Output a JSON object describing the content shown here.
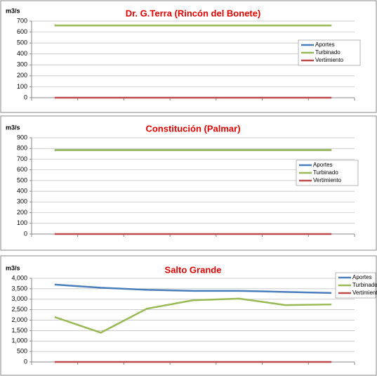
{
  "chart_data": [
    {
      "type": "line",
      "title": "Dr. G.Terra (Rincón del Bonete)",
      "y_label": "m3/s",
      "categories": [
        null,
        null,
        null,
        null,
        null,
        null,
        null
      ],
      "series": [
        {
          "name": "Aportes",
          "color": "#4a7ebb",
          "values": [
            660,
            660,
            660,
            660,
            660,
            660,
            660
          ]
        },
        {
          "name": "Turbinado",
          "color": "#98b954",
          "values": [
            660,
            660,
            660,
            660,
            660,
            660,
            660
          ]
        },
        {
          "name": "Vertimiento",
          "color": "#be4b48",
          "values": [
            0,
            0,
            0,
            0,
            0,
            0,
            0
          ]
        }
      ],
      "ylim": [
        0,
        700
      ],
      "yticks": [
        0,
        100,
        200,
        300,
        400,
        500,
        600,
        700
      ],
      "grid": true,
      "legend": "right"
    },
    {
      "type": "line",
      "title": "Constitución (Palmar)",
      "y_label": "m3/s",
      "categories": [
        null,
        null,
        null,
        null,
        null,
        null,
        null
      ],
      "series": [
        {
          "name": "Aportes",
          "color": "#4a7ebb",
          "values": [
            785,
            785,
            785,
            785,
            785,
            785,
            785
          ]
        },
        {
          "name": "Turbinado",
          "color": "#98b954",
          "values": [
            785,
            785,
            785,
            785,
            785,
            785,
            785
          ]
        },
        {
          "name": "Vertimiento",
          "color": "#be4b48",
          "values": [
            0,
            0,
            0,
            0,
            0,
            0,
            0
          ]
        }
      ],
      "ylim": [
        0,
        900
      ],
      "yticks": [
        0,
        100,
        200,
        300,
        400,
        500,
        600,
        700,
        800,
        900
      ],
      "grid": true,
      "legend": "right"
    },
    {
      "type": "line",
      "title": "Salto Grande",
      "y_label": "m3/s",
      "categories": [
        null,
        null,
        null,
        null,
        null,
        null,
        null
      ],
      "series": [
        {
          "name": "Aportes",
          "color": "#4a7ebb",
          "values": [
            3700,
            3550,
            3450,
            3400,
            3400,
            3350,
            3300
          ]
        },
        {
          "name": "Turbinado",
          "color": "#98b954",
          "values": [
            2150,
            1400,
            2550,
            2950,
            3030,
            2720,
            2750
          ]
        },
        {
          "name": "Vertimiento",
          "color": "#be4b48",
          "values": [
            0,
            0,
            0,
            0,
            0,
            0,
            0
          ]
        }
      ],
      "ylim": [
        0,
        4000
      ],
      "yticks": [
        0,
        {
          "value": 500,
          "label": "500"
        },
        {
          "value": 1000,
          "label": "1,000"
        },
        {
          "value": 1500,
          "label": "1,500"
        },
        {
          "value": 2000,
          "label": "2,000"
        },
        {
          "value": 2500,
          "label": "2,500"
        },
        {
          "value": 3000,
          "label": "3,000"
        },
        {
          "value": 3500,
          "label": "3,500"
        },
        {
          "value": 4000,
          "label": "4,000"
        }
      ],
      "grid": true,
      "legend": "right"
    }
  ]
}
